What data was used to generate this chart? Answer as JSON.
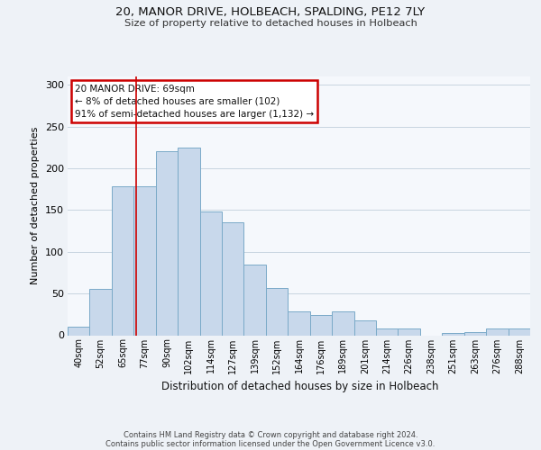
{
  "title1": "20, MANOR DRIVE, HOLBEACH, SPALDING, PE12 7LY",
  "title2": "Size of property relative to detached houses in Holbeach",
  "xlabel": "Distribution of detached houses by size in Holbeach",
  "ylabel": "Number of detached properties",
  "bin_labels": [
    "40sqm",
    "52sqm",
    "65sqm",
    "77sqm",
    "90sqm",
    "102sqm",
    "114sqm",
    "127sqm",
    "139sqm",
    "152sqm",
    "164sqm",
    "176sqm",
    "189sqm",
    "201sqm",
    "214sqm",
    "226sqm",
    "238sqm",
    "251sqm",
    "263sqm",
    "276sqm",
    "288sqm"
  ],
  "bar_heights": [
    10,
    55,
    178,
    178,
    220,
    225,
    148,
    135,
    85,
    57,
    29,
    24,
    29,
    18,
    8,
    8,
    0,
    3,
    4,
    8,
    8
  ],
  "bar_color": "#c8d8eb",
  "bar_edge_color": "#7aaac8",
  "bar_edge_width": 0.7,
  "property_line_x": 2.615,
  "property_line_color": "#cc0000",
  "annotation_text": "20 MANOR DRIVE: 69sqm\n← 8% of detached houses are smaller (102)\n91% of semi-detached houses are larger (1,132) →",
  "annotation_box_color": "#ffffff",
  "annotation_box_edge": "#cc0000",
  "ylim": [
    0,
    310
  ],
  "yticks": [
    0,
    50,
    100,
    150,
    200,
    250,
    300
  ],
  "footer1": "Contains HM Land Registry data © Crown copyright and database right 2024.",
  "footer2": "Contains public sector information licensed under the Open Government Licence v3.0.",
  "bg_color": "#eef2f7",
  "plot_bg_color": "#f5f8fc",
  "grid_color": "#c8d4e0"
}
